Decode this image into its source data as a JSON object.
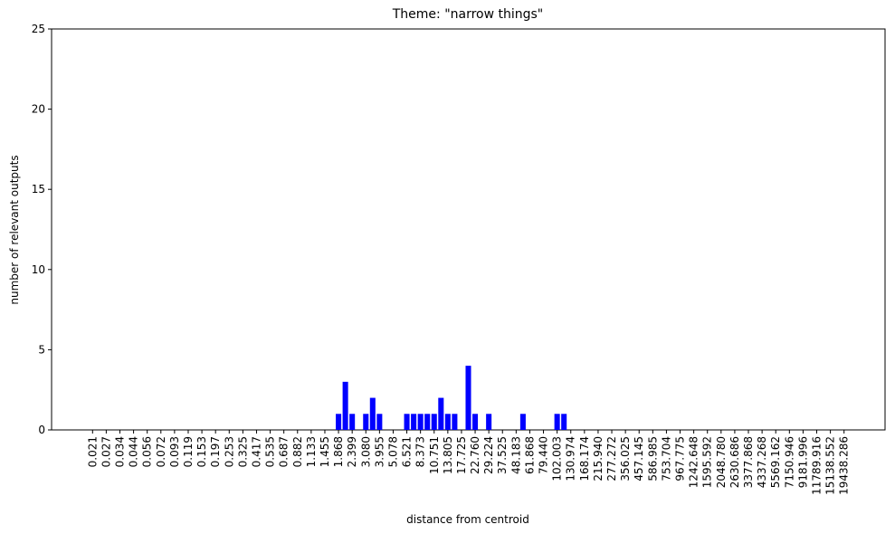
{
  "chart_data": {
    "type": "bar",
    "title": "Theme: \"narrow things\"",
    "xlabel": "distance from centroid",
    "ylabel": "number of relevant outputs",
    "categories": [
      "0.021",
      null,
      "0.027",
      null,
      "0.034",
      null,
      "0.044",
      null,
      "0.056",
      null,
      "0.072",
      null,
      "0.093",
      null,
      "0.119",
      null,
      "0.153",
      null,
      "0.197",
      null,
      "0.253",
      null,
      "0.325",
      null,
      "0.417",
      null,
      "0.535",
      null,
      "0.687",
      null,
      "0.882",
      null,
      "1.133",
      null,
      "1.455",
      null,
      "1.868",
      null,
      "2.399",
      null,
      "3.080",
      null,
      "3.955",
      null,
      "5.078",
      null,
      "6.521",
      null,
      "8.373",
      null,
      "10.751",
      null,
      "13.805",
      null,
      "17.725",
      null,
      "22.760",
      null,
      "29.224",
      null,
      "37.525",
      null,
      "48.183",
      null,
      "61.868",
      null,
      "79.440",
      null,
      "102.003",
      null,
      "130.974",
      null,
      "168.174",
      null,
      "215.940",
      null,
      "277.272",
      null,
      "356.025",
      null,
      "457.145",
      null,
      "586.985",
      null,
      "753.704",
      null,
      "967.775",
      null,
      "1242.648",
      null,
      "1595.592",
      null,
      "2048.780",
      null,
      "2630.686",
      null,
      "3377.868",
      null,
      "4337.268",
      null,
      "5569.162",
      null,
      "7150.946",
      null,
      "9181.996",
      null,
      "11789.916",
      null,
      "15138.552",
      null,
      "19438.286"
    ],
    "values": [
      0,
      0,
      0,
      0,
      0,
      0,
      0,
      0,
      0,
      0,
      0,
      0,
      0,
      0,
      0,
      0,
      0,
      0,
      0,
      0,
      0,
      0,
      0,
      0,
      0,
      0,
      0,
      0,
      0,
      0,
      0,
      0,
      0,
      0,
      0,
      0,
      1,
      3,
      1,
      0,
      1,
      2,
      1,
      0,
      0,
      0,
      1,
      1,
      1,
      1,
      1,
      2,
      1,
      1,
      0,
      4,
      1,
      0,
      1,
      0,
      0,
      0,
      0,
      1,
      0,
      0,
      0,
      0,
      1,
      1,
      0,
      0,
      0,
      0,
      0,
      0,
      0,
      0,
      0,
      0,
      0,
      0,
      0,
      0,
      0,
      0,
      0,
      0,
      0,
      0,
      0,
      0,
      0,
      0,
      0,
      0,
      0,
      0,
      0,
      0,
      0,
      0,
      0,
      0,
      0,
      0,
      0,
      0,
      0,
      0,
      0
    ],
    "color": "#0000ff",
    "ylim": [
      0,
      25
    ],
    "yticks": [
      0,
      5,
      10,
      15,
      20,
      25
    ]
  }
}
